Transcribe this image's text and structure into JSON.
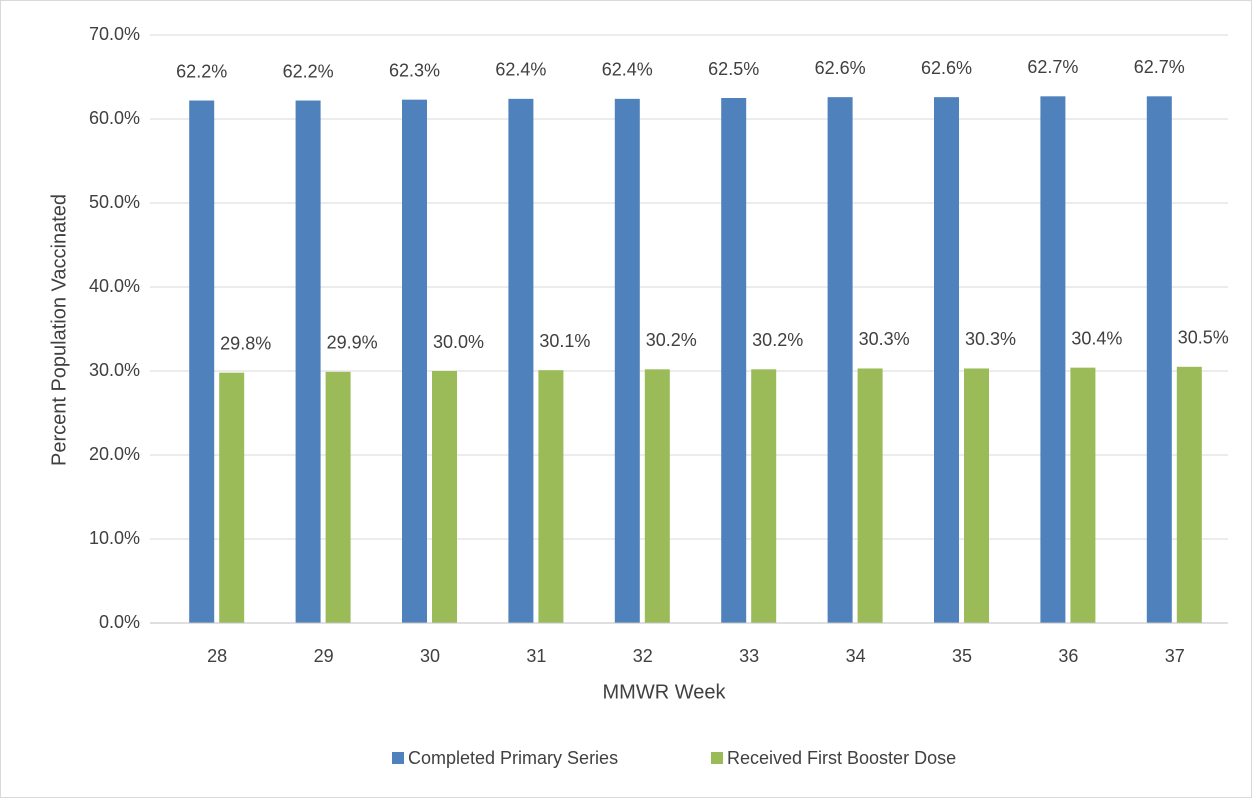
{
  "chart_data": {
    "type": "bar",
    "y_label": "Percent Population Vaccinated",
    "x_label": "MMWR Week",
    "categories": [
      "28",
      "29",
      "30",
      "31",
      "32",
      "33",
      "34",
      "35",
      "36",
      "37"
    ],
    "series": [
      {
        "name": "Completed Primary Series",
        "color": "#4f81bd",
        "values": [
          62.2,
          62.2,
          62.3,
          62.4,
          62.4,
          62.5,
          62.6,
          62.6,
          62.7,
          62.7
        ],
        "value_labels": [
          "62.2%",
          "62.2%",
          "62.3%",
          "62.4%",
          "62.4%",
          "62.5%",
          "62.6%",
          "62.6%",
          "62.7%",
          "62.7%"
        ]
      },
      {
        "name": "Received First Booster Dose",
        "color": "#9bbb59",
        "values": [
          29.8,
          29.9,
          30.0,
          30.1,
          30.2,
          30.2,
          30.3,
          30.3,
          30.4,
          30.5
        ],
        "value_labels": [
          "29.8%",
          "29.9%",
          "30.0%",
          "30.1%",
          "30.2%",
          "30.2%",
          "30.3%",
          "30.3%",
          "30.4%",
          "30.5%"
        ]
      }
    ],
    "ylim": [
      0,
      70
    ],
    "yticks": [
      {
        "value": 0,
        "label": "0.0%"
      },
      {
        "value": 10,
        "label": "10.0%"
      },
      {
        "value": 20,
        "label": "20.0%"
      },
      {
        "value": 30,
        "label": "30.0%"
      },
      {
        "value": 40,
        "label": "40.0%"
      },
      {
        "value": 50,
        "label": "50.0%"
      },
      {
        "value": 60,
        "label": "60.0%"
      },
      {
        "value": 70,
        "label": "70.0%"
      }
    ],
    "grid": true,
    "legend": "bottom"
  }
}
